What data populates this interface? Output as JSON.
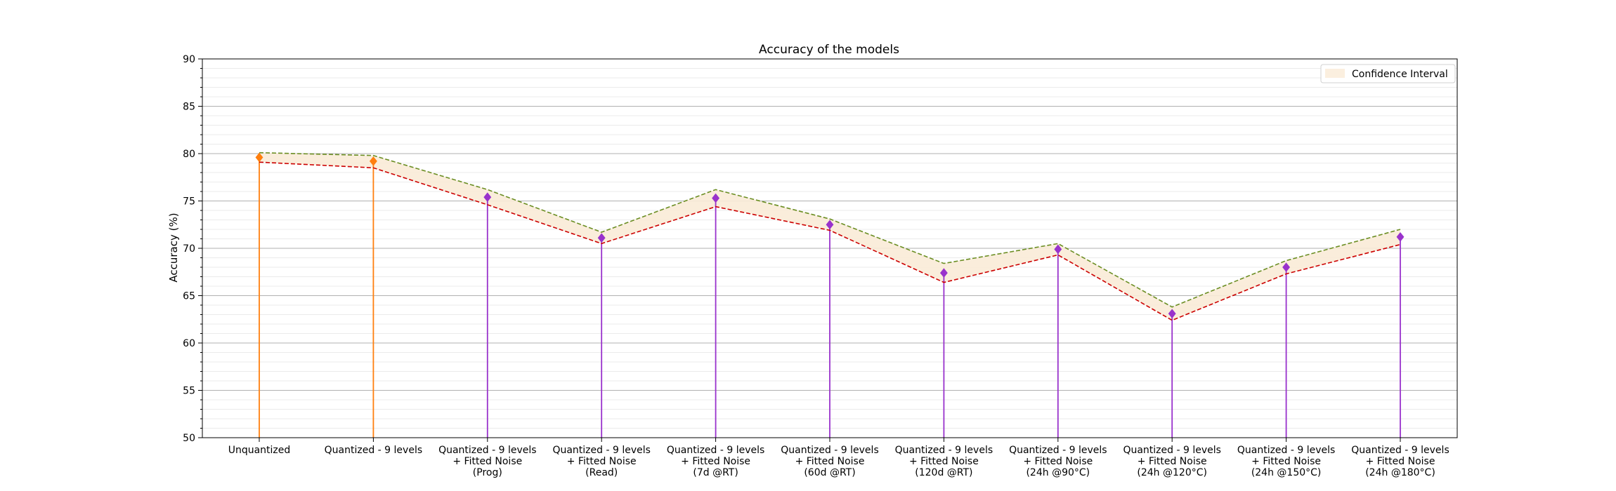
{
  "chart_data": {
    "type": "line",
    "title": "Accuracy of the models",
    "xlabel": "",
    "ylabel": "Accuracy (%)",
    "ylim": [
      50,
      90
    ],
    "yticks": [
      50,
      55,
      60,
      65,
      70,
      75,
      80,
      85,
      90
    ],
    "grid": "horizontal major and minor",
    "legend_placement": "top-right",
    "categories": [
      "Unquantized",
      "Quantized - 9 levels",
      "Quantized - 9 levels\n+ Fitted Noise\n(Prog)",
      "Quantized - 9 levels\n+ Fitted Noise\n(Read)",
      "Quantized - 9 levels\n+ Fitted Noise\n(7d @RT)",
      "Quantized - 9 levels\n+ Fitted Noise\n(60d @RT)",
      "Quantized - 9 levels\n+ Fitted Noise\n(120d @RT)",
      "Quantized - 9 levels\n+ Fitted Noise\n(24h @90°C)",
      "Quantized - 9 levels\n+ Fitted Noise\n(24h @120°C)",
      "Quantized - 9 levels\n+ Fitted Noise\n(24h @150°C)",
      "Quantized - 9 levels\n+ Fitted Noise\n(24h @180°C)"
    ],
    "series": [
      {
        "values": [
          79.6,
          79.2,
          75.4,
          71.1,
          75.3,
          72.5,
          67.4,
          69.9,
          63.1,
          68.0,
          71.2
        ]
      },
      {
        "values": [
          80.1,
          79.8,
          76.2,
          71.7,
          76.2,
          73.1,
          68.4,
          70.5,
          63.8,
          68.7,
          72.0
        ]
      },
      {
        "values": [
          79.1,
          78.5,
          74.6,
          70.5,
          74.4,
          71.9,
          66.4,
          69.3,
          62.4,
          67.3,
          70.4
        ]
      }
    ],
    "legend": [
      "Confidence Interval"
    ],
    "colors": {
      "stem_unquantized": "#ff7f0e",
      "stem_noise": "#9932cc",
      "upper_line": "#6b8e23",
      "lower_line": "#cc0000",
      "band_fill": "#faebd7",
      "grid": "#b0b0b0"
    },
    "stem_color_groups": [
      "orange",
      "orange",
      "purple",
      "purple",
      "purple",
      "purple",
      "purple",
      "purple",
      "purple",
      "purple",
      "purple"
    ]
  }
}
